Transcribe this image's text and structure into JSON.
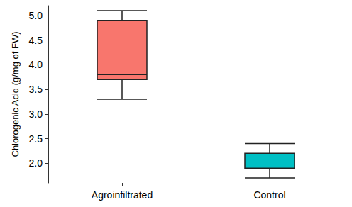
{
  "chart_data": {
    "type": "boxplot",
    "y_label": "Chlorogenic Acid (g/mg of FW)",
    "categories": [
      "Agroinfiltrated",
      "Control"
    ],
    "values": [
      [
        3.3,
        3.7,
        3.8,
        4.9,
        5.1
      ],
      [
        1.7,
        1.9,
        1.9,
        2.2,
        2.4
      ]
    ],
    "colors": [
      "#f8766d",
      "#00bfc4"
    ],
    "ylim": [
      1.6,
      5.2
    ],
    "yticks": [
      {
        "value": 2.0,
        "label": "2.0"
      },
      2.5,
      {
        "value": 3.0,
        "label": "3.0"
      },
      3.5,
      {
        "value": 4.0,
        "label": "4.0"
      },
      4.5,
      {
        "value": 5.0,
        "label": "5.0"
      }
    ],
    "grid": false
  }
}
